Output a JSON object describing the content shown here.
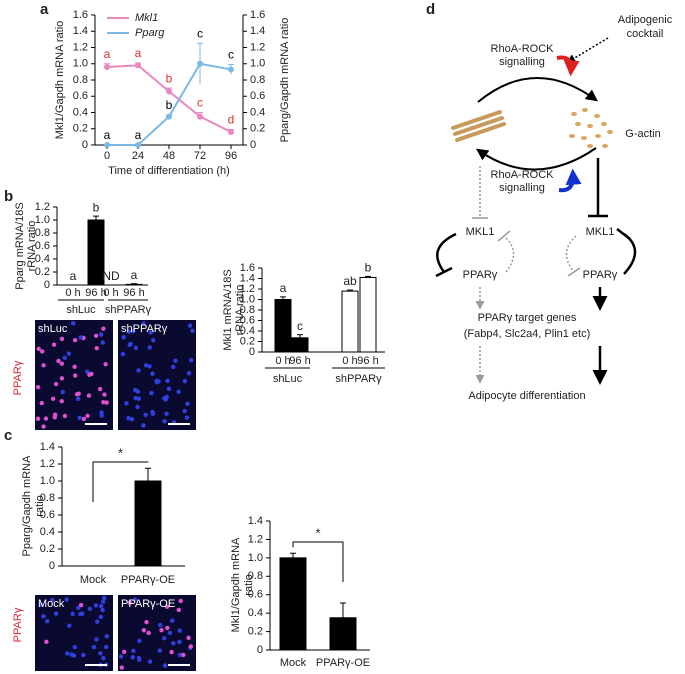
{
  "panel_labels": [
    "a",
    "b",
    "c",
    "d"
  ],
  "chart_data": [
    {
      "type": "line",
      "x": [
        0,
        24,
        48,
        72,
        96
      ],
      "xlim": [
        0,
        96
      ],
      "xticks": [
        0,
        24,
        48,
        72,
        96
      ],
      "xlabel": "Time of differentiation (h)",
      "ylabel": "Mkl1/Gapdh mRNA ratio",
      "y2label": "Pparg/Gapdh mRNA ratio",
      "ylim": [
        0,
        1.6
      ],
      "yticks": [
        0,
        0.2,
        0.4,
        0.6,
        0.8,
        {
          "value": 1,
          "label": "1.0"
        },
        1.2,
        1.4,
        1.6
      ],
      "y2lim": [
        0,
        1.6
      ],
      "y2ticks": [
        0,
        0.2,
        0.4,
        0.6,
        0.8,
        {
          "value": 1,
          "label": "1.0"
        },
        1.2,
        1.4,
        1.6
      ],
      "legend": "upper left",
      "series": [
        {
          "name": "Mkl1",
          "color": "#e887c0",
          "values": [
            0.96,
            0.98,
            0.66,
            0.35,
            0.16
          ],
          "errors": [
            0.04,
            0.03,
            0.04,
            0.05,
            0.03
          ],
          "letters": [
            "a",
            "a",
            "b",
            "c",
            "d"
          ],
          "letter_color": "#e0312f"
        },
        {
          "name": "Pparg",
          "color": "#7cb8e4",
          "axis": "y2",
          "values": [
            0,
            0,
            0.35,
            1.0,
            0.93
          ],
          "errors": [
            0,
            0,
            0.02,
            0.25,
            0.06
          ],
          "letters": [
            "a",
            "a",
            "b",
            "c",
            "c"
          ],
          "letter_color": "#000000"
        }
      ]
    },
    {
      "type": "bar",
      "ylabel": [
        "Pparg mRNA/18S",
        "rRNA ratio"
      ],
      "ylim": [
        0,
        1.2
      ],
      "yticks": [
        0,
        0.2,
        0.4,
        0.6,
        0.8,
        {
          "value": 1,
          "label": "1.0"
        },
        1.2
      ],
      "categories": [
        "0 h",
        "96 h",
        "0 h",
        "96 h"
      ],
      "groups": [
        "shLuc",
        "shPPARγ"
      ],
      "values": [
        0,
        1.0,
        null,
        0.01
      ],
      "errors": [
        0,
        0.06,
        null,
        0.01
      ],
      "letters": [
        "a",
        "b",
        "ND",
        "a"
      ],
      "colors": [
        "#000000",
        "#000000",
        "#000000",
        "#000000"
      ]
    },
    {
      "type": "bar",
      "ylabel": [
        "Mkl1 mRNA/18S",
        "rRNA ratio"
      ],
      "ylim": [
        0,
        1.6
      ],
      "yticks": [
        0,
        0.2,
        0.4,
        0.6,
        0.8,
        {
          "value": 1,
          "label": "1.0"
        },
        1.2,
        1.4,
        1.6
      ],
      "categories": [
        "0 h",
        "96 h",
        "0 h",
        "96 h"
      ],
      "groups": [
        "shLuc",
        "shPPARγ"
      ],
      "values": [
        1.0,
        0.27,
        1.16,
        1.42
      ],
      "errors": [
        0.05,
        0.06,
        0.02,
        0.02
      ],
      "letters": [
        "a",
        "c",
        "ab",
        "b"
      ],
      "colors": [
        "#000000",
        "#000000",
        "#ffffff",
        "#ffffff"
      ]
    },
    {
      "type": "bar",
      "ylabel": [
        "Pparg/Gapdh mRNA",
        "ratio"
      ],
      "ylim": [
        0,
        1.4
      ],
      "yticks": [
        0,
        0.2,
        0.4,
        0.6,
        0.8,
        {
          "value": 1,
          "label": "1.0"
        },
        1.2,
        1.4
      ],
      "categories": [
        "Mock",
        "PPARγ-OE"
      ],
      "values": [
        0,
        1.0
      ],
      "errors": [
        0,
        0.15
      ],
      "significance": "*",
      "colors": [
        "#000000",
        "#000000"
      ]
    },
    {
      "type": "bar",
      "ylabel": [
        "Mkl1/Gapdh mRNA",
        "ratio"
      ],
      "ylim": [
        0,
        1.4
      ],
      "yticks": [
        0,
        0.2,
        0.4,
        0.6,
        0.8,
        {
          "value": 1,
          "label": "1.0"
        },
        1.2,
        1.4
      ],
      "categories": [
        "Mock",
        "PPARγ-OE"
      ],
      "values": [
        1.0,
        0.35
      ],
      "errors": [
        0.05,
        0.16
      ],
      "significance": "*",
      "colors": [
        "#000000",
        "#000000"
      ]
    }
  ],
  "images": {
    "b": {
      "stain": "PPARγ",
      "panels": [
        "shLuc",
        "shPPARγ"
      ]
    },
    "c": {
      "stain": "PPARγ",
      "panels": [
        "Mock",
        "PPARγ-OE"
      ]
    }
  },
  "diagram": {
    "stimulus": [
      "Adipogenic",
      "cocktail"
    ],
    "signal_top": [
      "RhoA-ROCK",
      "signalling"
    ],
    "g_actin": "G-actin",
    "signal_bottom": [
      "RhoA-ROCK",
      "signalling"
    ],
    "left": {
      "mkl1": "MKL1",
      "ppar": "PPARγ"
    },
    "right": {
      "mkl1": "MKL1",
      "ppar": "PPARγ"
    },
    "targets": [
      "PPARγ target genes",
      "(Fabp4, Slc2a4, Plin1 etc)"
    ],
    "outcome": "Adipocyte differentiation"
  }
}
